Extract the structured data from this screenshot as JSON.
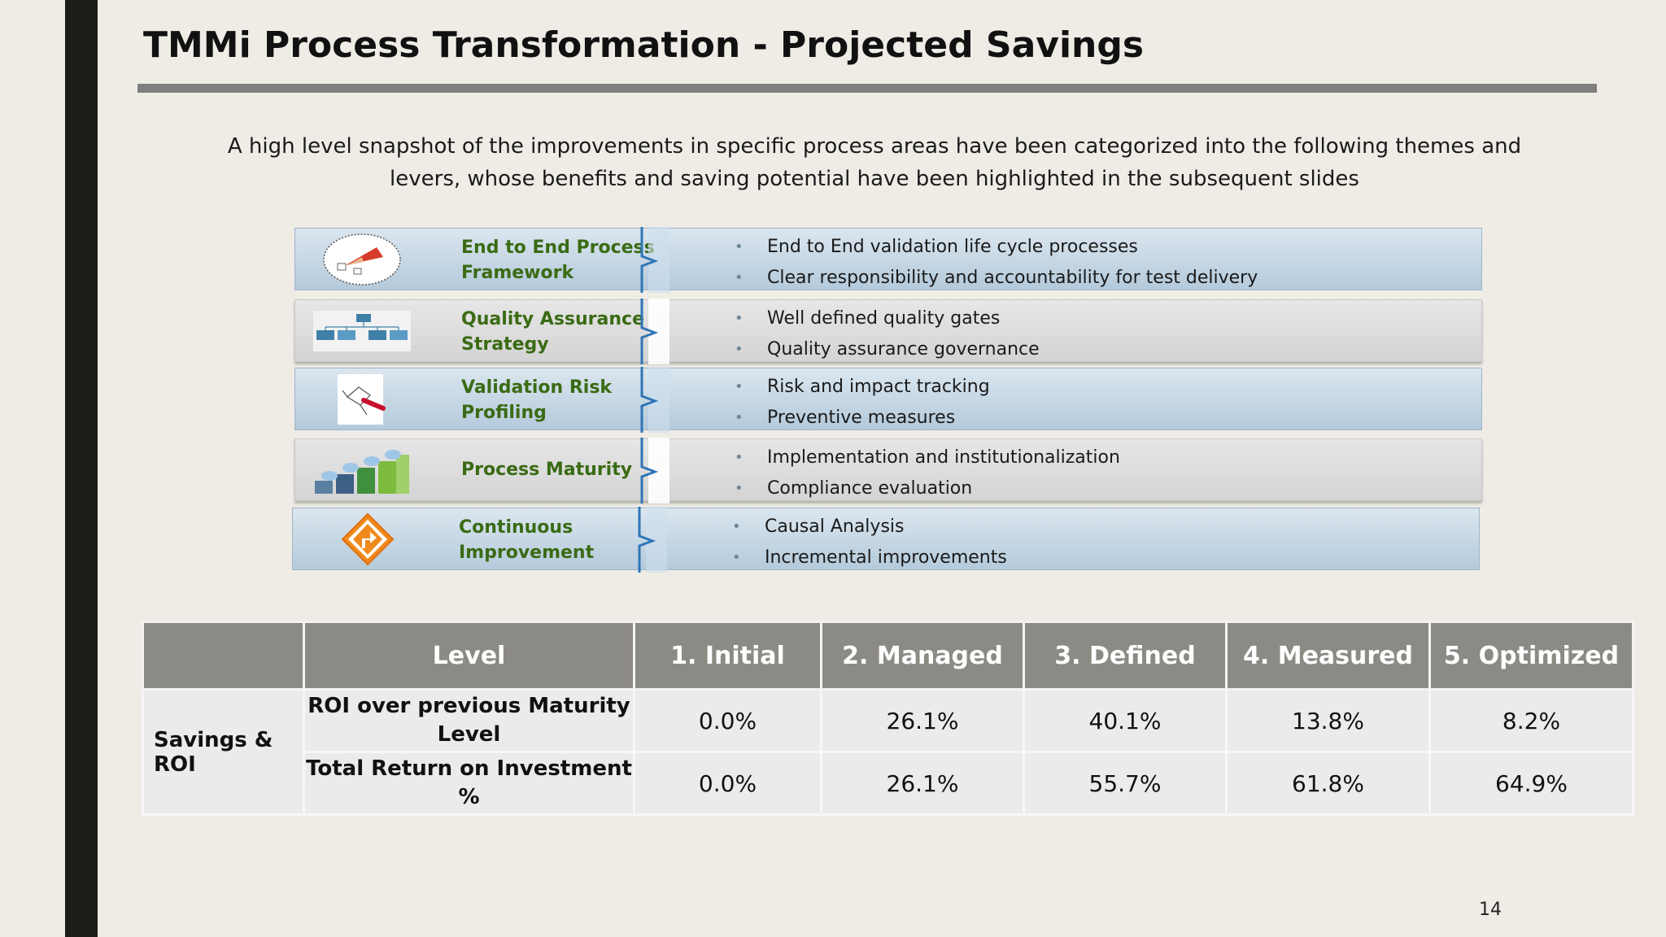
{
  "slide": {
    "title": "TMMi Process Transformation - Projected Savings",
    "subtitle": "A high level snapshot of the improvements in specific process areas have been categorized into the following themes and levers, whose benefits and saving potential have been highlighted in the subsequent slides",
    "page_number": "14"
  },
  "themes": [
    {
      "label": "End to End Process Framework",
      "icon": "process-framework-icon",
      "bullets": [
        "End to End validation life cycle processes",
        "Clear responsibility and accountability for test delivery"
      ]
    },
    {
      "label": "Quality Assurance Strategy",
      "icon": "org-chart-icon",
      "bullets": [
        "Well defined quality gates",
        "Quality assurance governance"
      ]
    },
    {
      "label": "Validation Risk Profiling",
      "icon": "risk-diagram-icon",
      "bullets": [
        "Risk and impact tracking",
        "Preventive measures"
      ]
    },
    {
      "label": "Process Maturity",
      "icon": "maturity-steps-icon",
      "bullets": [
        "Implementation and institutionalization",
        "Compliance evaluation"
      ]
    },
    {
      "label": "Continuous Improvement",
      "icon": "route-sign-icon",
      "bullets": [
        "Causal Analysis",
        "Incremental improvements"
      ]
    }
  ],
  "table": {
    "header": [
      "Level",
      "1. Initial",
      "2. Managed",
      "3. Defined",
      "4. Measured",
      "5. Optimized"
    ],
    "group_label": "Savings & ROI",
    "rows": [
      {
        "label": "ROI over previous Maturity Level",
        "values": [
          "0.0%",
          "26.1%",
          "40.1%",
          "13.8%",
          "8.2%"
        ]
      },
      {
        "label": "Total Return on Investment %",
        "values": [
          "0.0%",
          "26.1%",
          "55.7%",
          "61.8%",
          "64.9%"
        ]
      }
    ]
  },
  "colors": {
    "theme_label": "#3a6b14",
    "header_bg": "#8c8a84",
    "accent_blue": "#2e75b6",
    "sidebar": "#1c1f17"
  }
}
